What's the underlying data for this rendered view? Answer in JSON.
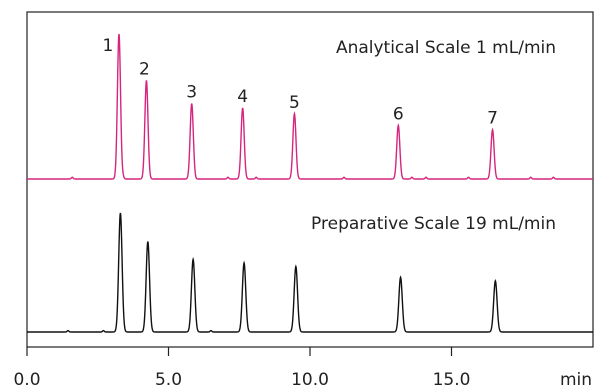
{
  "chart_data": {
    "type": "line",
    "title": "",
    "xlabel": "min",
    "ylabel": "",
    "xlim": [
      0,
      20
    ],
    "grid": false,
    "x_ticks": [
      {
        "value": 0,
        "label": "0.0"
      },
      {
        "value": 5,
        "label": "5.0"
      },
      {
        "value": 10,
        "label": "10.0"
      },
      {
        "value": 15,
        "label": "15.0"
      }
    ],
    "series": [
      {
        "name": "Analytical Scale 1 mL/min",
        "color": "#d6247f",
        "baseline_noise": [
          1.6,
          3.4,
          5.9,
          7.1,
          8.1,
          11.2,
          13.6,
          14.1,
          15.6,
          17.8,
          18.6
        ],
        "peaks": [
          {
            "label": "1",
            "time": 3.25,
            "height": 1.0
          },
          {
            "label": "2",
            "time": 4.22,
            "height": 0.68
          },
          {
            "label": "3",
            "time": 5.82,
            "height": 0.52
          },
          {
            "label": "4",
            "time": 7.62,
            "height": 0.49
          },
          {
            "label": "5",
            "time": 9.45,
            "height": 0.45
          },
          {
            "label": "6",
            "time": 13.12,
            "height": 0.37
          },
          {
            "label": "7",
            "time": 16.45,
            "height": 0.34
          }
        ]
      },
      {
        "name": "Preparative Scale 19 mL/min",
        "color": "#111111",
        "baseline_noise": [
          1.45,
          2.7,
          6.5
        ],
        "peaks": [
          {
            "label": "1",
            "time": 3.3,
            "height": 1.0
          },
          {
            "label": "2",
            "time": 4.27,
            "height": 0.76
          },
          {
            "label": "3",
            "time": 5.87,
            "height": 0.61
          },
          {
            "label": "4",
            "time": 7.67,
            "height": 0.58
          },
          {
            "label": "5",
            "time": 9.5,
            "height": 0.55
          },
          {
            "label": "6",
            "time": 13.2,
            "height": 0.46
          },
          {
            "label": "7",
            "time": 16.55,
            "height": 0.43
          }
        ]
      }
    ]
  },
  "colors": {
    "analytical": "#d6247f",
    "preparative": "#111111",
    "frame": "#222222"
  }
}
